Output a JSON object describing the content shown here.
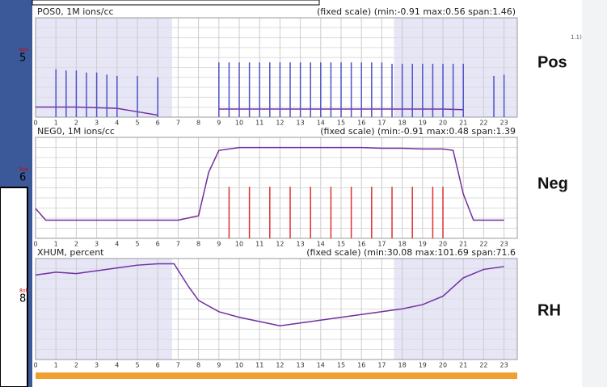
{
  "corner_text": "1.1)",
  "chart_data": [
    {
      "type": "line",
      "title": "POS0, 1M ions/cc",
      "subtitle": "(fixed scale) (min:-0.91 max:0.56 span:1.46)",
      "label": "5",
      "tag": "8oh",
      "side_label": "Pos",
      "xlim": [
        0,
        23.65
      ],
      "ylim": [
        -0.91,
        0.56
      ],
      "xticks": [
        0,
        1,
        2,
        3,
        4,
        5,
        6,
        7,
        8,
        9,
        10,
        11,
        12,
        13,
        14,
        15,
        16,
        17,
        18,
        19,
        20,
        21,
        22,
        23
      ],
      "bands": [
        [
          0,
          6.7
        ],
        [
          17.6,
          23.65
        ]
      ],
      "series": [
        {
          "color": "#7030a0",
          "style": "line",
          "x": [
            0,
            1,
            2,
            3,
            4,
            5,
            6,
            7,
            8,
            9,
            10,
            11,
            12,
            13,
            14,
            15,
            16,
            17,
            18,
            19,
            20,
            21,
            22,
            23
          ],
          "values": [
            -0.76,
            -0.76,
            -0.76,
            -0.77,
            -0.78,
            -0.83,
            -0.88,
            null,
            null,
            -0.79,
            -0.79,
            -0.79,
            -0.79,
            -0.79,
            -0.79,
            -0.79,
            -0.79,
            -0.79,
            -0.79,
            -0.79,
            -0.79,
            -0.8,
            null,
            null
          ]
        },
        {
          "color": "#5050c8",
          "style": "spike",
          "x": [
            1,
            1.5,
            2,
            2.5,
            3,
            3.5,
            4,
            5,
            6,
            9,
            9.5,
            10,
            10.5,
            11,
            11.5,
            12,
            12.5,
            13,
            13.5,
            14,
            14.5,
            15,
            15.5,
            16,
            16.5,
            17,
            17.5,
            18,
            18.5,
            19,
            19.5,
            20,
            20.5,
            21,
            22.5,
            23
          ],
          "values": [
            -0.2,
            -0.22,
            -0.22,
            -0.25,
            -0.25,
            -0.28,
            -0.3,
            -0.3,
            -0.32,
            -0.1,
            -0.1,
            -0.1,
            -0.1,
            -0.1,
            -0.1,
            -0.1,
            -0.1,
            -0.1,
            -0.1,
            -0.1,
            -0.1,
            -0.1,
            -0.1,
            -0.1,
            -0.1,
            -0.1,
            -0.12,
            -0.12,
            -0.12,
            -0.12,
            -0.12,
            -0.12,
            -0.12,
            -0.12,
            -0.3,
            -0.28
          ]
        }
      ]
    },
    {
      "type": "line",
      "title": "NEG0, 1M ions/cc",
      "subtitle": "(fixed scale) (min:-0.91 max:0.48 span:1.39",
      "label": "6",
      "tag": "8oh",
      "side_label": "Neg",
      "xlim": [
        0,
        23.65
      ],
      "ylim": [
        -0.91,
        0.48
      ],
      "xticks": [
        0,
        1,
        2,
        3,
        4,
        5,
        6,
        7,
        8,
        9,
        10,
        11,
        12,
        13,
        14,
        15,
        16,
        17,
        18,
        19,
        20,
        21,
        22,
        23
      ],
      "bands": [],
      "series": [
        {
          "color": "#7030a0",
          "style": "line",
          "x": [
            0,
            0.5,
            1,
            2,
            3,
            4,
            5,
            6,
            7,
            8,
            8.5,
            9,
            10,
            11,
            12,
            13,
            14,
            15,
            16,
            17,
            18,
            19,
            20,
            20.5,
            21,
            21.5,
            22,
            23
          ],
          "values": [
            -0.5,
            -0.66,
            -0.66,
            -0.66,
            -0.66,
            -0.66,
            -0.66,
            -0.66,
            -0.66,
            -0.6,
            0.0,
            0.3,
            0.34,
            0.34,
            0.34,
            0.34,
            0.34,
            0.34,
            0.34,
            0.33,
            0.33,
            0.32,
            0.32,
            0.3,
            -0.3,
            -0.66,
            -0.66,
            -0.66
          ]
        },
        {
          "color": "#e03030",
          "style": "spike",
          "x": [
            9.5,
            10.5,
            11.5,
            12.5,
            13.5,
            14.5,
            15.5,
            16.5,
            17.5,
            18.5,
            19.5,
            20
          ],
          "values": [
            -0.2,
            -0.2,
            -0.2,
            -0.2,
            -0.2,
            -0.2,
            -0.2,
            -0.2,
            -0.2,
            -0.2,
            -0.2,
            -0.2
          ]
        }
      ]
    },
    {
      "type": "line",
      "title": "XHUM, percent",
      "subtitle": "(fixed scale) (min:30.08 max:101.69 span:71.6",
      "label": "8",
      "tag": "8oh",
      "side_label": "RH",
      "xlim": [
        0,
        23.65
      ],
      "ylim": [
        30.08,
        101.69
      ],
      "xticks": [
        0,
        1,
        2,
        3,
        4,
        5,
        6,
        7,
        8,
        9,
        10,
        11,
        12,
        13,
        14,
        15,
        16,
        17,
        18,
        19,
        20,
        21,
        22,
        23
      ],
      "bands": [
        [
          0,
          6.7
        ],
        [
          17.6,
          23.65
        ]
      ],
      "series": [
        {
          "color": "#7030a0",
          "style": "line",
          "x": [
            0,
            1,
            2,
            3,
            4,
            5,
            6,
            6.8,
            7.5,
            8,
            9,
            10,
            11,
            12,
            13,
            14,
            15,
            16,
            17,
            18,
            19,
            20,
            21,
            22,
            23
          ],
          "values": [
            90,
            92,
            91,
            93,
            95,
            97,
            98,
            98,
            82,
            72,
            64,
            60,
            57,
            54,
            56,
            58,
            60,
            62,
            64,
            66,
            69,
            75,
            88,
            94,
            96
          ]
        }
      ]
    }
  ]
}
